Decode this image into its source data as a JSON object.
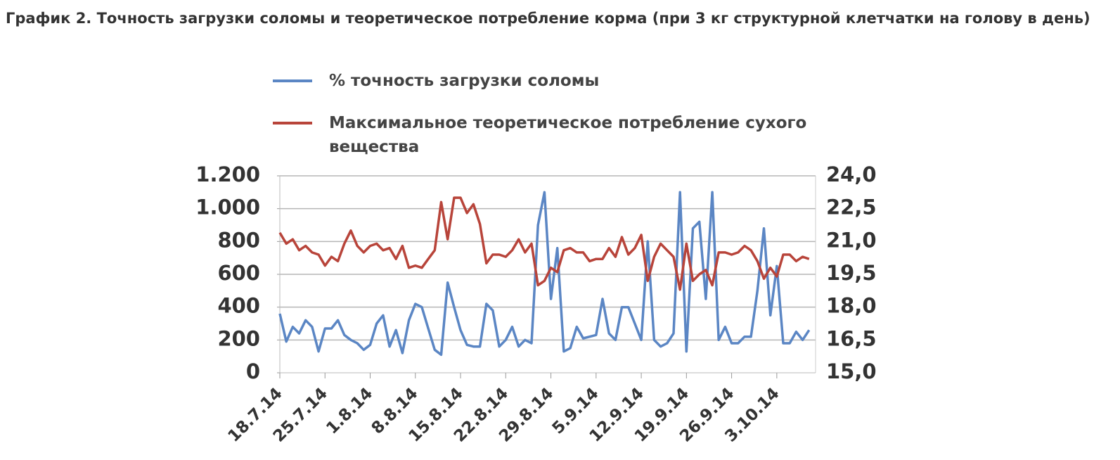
{
  "chart_data": {
    "type": "line",
    "title": "График 2. Точность загрузки соломы и теоретическое потребление корма (при 3 кг структурной клетчатки на голову в день)",
    "categories": [
      "18.7.14",
      null,
      null,
      null,
      null,
      null,
      null,
      "25.7.14",
      null,
      null,
      null,
      null,
      null,
      null,
      "1.8.14",
      null,
      null,
      null,
      null,
      null,
      null,
      "8.8.14",
      null,
      null,
      null,
      null,
      null,
      null,
      "15.8.14",
      null,
      null,
      null,
      null,
      null,
      null,
      "22.8.14",
      null,
      null,
      null,
      null,
      null,
      null,
      "29.8.14",
      null,
      null,
      null,
      null,
      null,
      null,
      "5.9.14",
      null,
      null,
      null,
      null,
      null,
      null,
      "12.9.14",
      null,
      null,
      null,
      null,
      null,
      null,
      "19.9.14",
      null,
      null,
      null,
      null,
      null,
      null,
      "26.9.14",
      null,
      null,
      null,
      null,
      null,
      null,
      "3.10.14",
      null,
      null,
      null,
      null,
      null
    ],
    "series": [
      {
        "name": "% точность загрузки соломы",
        "color": "#5b86c4",
        "axis": "y",
        "values": [
          360,
          190,
          280,
          240,
          320,
          280,
          130,
          270,
          270,
          320,
          230,
          200,
          180,
          140,
          170,
          300,
          350,
          160,
          260,
          120,
          320,
          420,
          400,
          270,
          140,
          110,
          550,
          400,
          260,
          170,
          160,
          160,
          420,
          380,
          160,
          200,
          280,
          160,
          200,
          180,
          900,
          1100,
          450,
          760,
          130,
          150,
          280,
          210,
          220,
          230,
          450,
          240,
          200,
          400,
          400,
          300,
          200,
          800,
          200,
          160,
          180,
          240,
          1100,
          130,
          880,
          920,
          450,
          1100,
          200,
          280,
          180,
          180,
          220,
          220,
          500,
          880,
          350,
          650,
          180,
          180,
          250,
          200,
          260
        ]
      },
      {
        "name": "Максимальное теоретическое потребление сухого вещества",
        "color": "#b8443a",
        "axis": "y2",
        "values": [
          21.4,
          20.9,
          21.1,
          20.6,
          20.8,
          20.5,
          20.4,
          19.9,
          20.3,
          20.1,
          20.9,
          21.5,
          20.8,
          20.5,
          20.8,
          20.9,
          20.6,
          20.7,
          20.2,
          20.8,
          19.8,
          19.9,
          19.8,
          20.2,
          20.6,
          22.8,
          21.1,
          23.0,
          23.0,
          22.3,
          22.7,
          21.8,
          20.0,
          20.4,
          20.4,
          20.3,
          20.6,
          21.1,
          20.5,
          20.9,
          19.0,
          19.2,
          19.8,
          19.6,
          20.6,
          20.7,
          20.5,
          20.5,
          20.1,
          20.2,
          20.2,
          20.7,
          20.3,
          21.2,
          20.4,
          20.7,
          21.3,
          19.2,
          20.3,
          20.9,
          20.6,
          20.3,
          18.8,
          20.9,
          19.2,
          19.5,
          19.7,
          19.0,
          20.5,
          20.5,
          20.4,
          20.5,
          20.8,
          20.6,
          20.1,
          19.3,
          19.8,
          19.4,
          20.4,
          20.4,
          20.1,
          20.3,
          20.2
        ]
      }
    ],
    "ylim": [
      0,
      1200
    ],
    "yticks": [
      0,
      200,
      400,
      600,
      800,
      {
        "value": 1000,
        "label": "1.000"
      },
      {
        "value": 1200,
        "label": "1.200"
      }
    ],
    "y2lim": [
      15,
      24
    ],
    "y2ticks": [
      {
        "value": 15,
        "label": "15,0"
      },
      {
        "value": 16.5,
        "label": "16,5"
      },
      {
        "value": 18,
        "label": "18,0"
      },
      {
        "value": 19.5,
        "label": "19,5"
      },
      {
        "value": 21,
        "label": "21,0"
      },
      {
        "value": 22.5,
        "label": "22,5"
      },
      {
        "value": 24,
        "label": "24,0"
      }
    ],
    "grid": true
  }
}
